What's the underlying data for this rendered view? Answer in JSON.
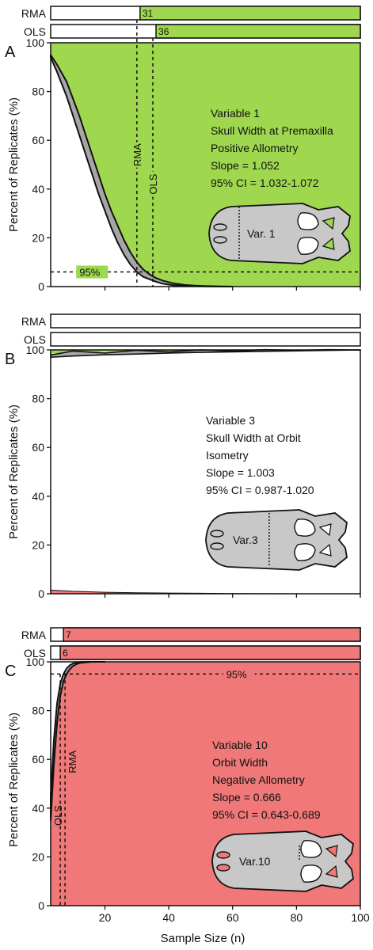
{
  "colors": {
    "green": "#9fd84f",
    "red": "#f07878",
    "gray": "#a6a6a6",
    "skull": "#c8c8c8"
  },
  "y_axis_label": "Percent of Replicates (%)",
  "x_axis_label": "Sample Size (n)",
  "bar_labels": {
    "rma": "RMA",
    "ols": "OLS"
  },
  "threshold_label": "95%",
  "chart_data": [
    {
      "type": "area",
      "panel": "A",
      "xlim": [
        3,
        100
      ],
      "ylim": [
        0,
        100
      ],
      "x_ticks": [
        20,
        40,
        60,
        80,
        100
      ],
      "y_ticks": [
        0,
        20,
        40,
        60,
        80,
        100
      ],
      "x_tick_labels": [
        "",
        "",
        "",
        "",
        ""
      ],
      "fill_color_key": "green",
      "rma_bar": {
        "value": 31,
        "label": "31"
      },
      "ols_bar": {
        "value": 36,
        "label": "36"
      },
      "rma_line": 30,
      "ols_line": 35,
      "threshold_y": 6,
      "threshold_label_x": 12,
      "annotation": [
        "Variable 1",
        "Skull Width at Premaxilla",
        "Positive Allometry",
        "Slope = 1.052",
        "95% CI = 1.032-1.072"
      ],
      "skull_label": "Var. 1",
      "lower_curve": {
        "x": [
          3,
          5,
          8,
          10,
          12,
          14,
          16,
          18,
          20,
          22,
          24,
          26,
          28,
          30,
          32,
          34,
          36,
          38,
          40,
          42,
          45,
          48,
          52,
          56,
          60
        ],
        "y": [
          94,
          88,
          78,
          70,
          62,
          54,
          46,
          38,
          31,
          24,
          18,
          13,
          9,
          6,
          4,
          3,
          2,
          1.2,
          0.8,
          0.5,
          0.3,
          0.2,
          0.1,
          0,
          0
        ]
      },
      "upper_curve": {
        "x": [
          3,
          5,
          8,
          10,
          12,
          14,
          16,
          18,
          20,
          22,
          24,
          26,
          28,
          30,
          32,
          34,
          36,
          38,
          40,
          42,
          45,
          48,
          52,
          56,
          60
        ],
        "y": [
          95,
          91,
          84,
          77,
          70,
          62,
          54,
          46,
          38,
          31,
          25,
          19,
          14,
          10,
          7,
          5,
          3.5,
          2.5,
          1.8,
          1.2,
          0.7,
          0.4,
          0.2,
          0.1,
          0
        ]
      }
    },
    {
      "type": "area",
      "panel": "B",
      "xlim": [
        3,
        100
      ],
      "ylim": [
        0,
        100
      ],
      "x_ticks": [
        20,
        40,
        60,
        80,
        100
      ],
      "y_ticks": [
        0,
        20,
        40,
        60,
        80,
        100
      ],
      "x_tick_labels": [
        "",
        "",
        "",
        "",
        ""
      ],
      "fill_color_key": "",
      "top_band": {
        "x": [
          3,
          10,
          20,
          30,
          40,
          50,
          60,
          70,
          80,
          90,
          100
        ],
        "lower": [
          97,
          97.5,
          98,
          98.3,
          98.7,
          99,
          99.2,
          99.4,
          99.6,
          99.8,
          100
        ],
        "upper": [
          98.5,
          99,
          99.2,
          99.4,
          99.6,
          99.7,
          99.8,
          99.9,
          100,
          100,
          100
        ]
      },
      "bottom_band": {
        "x": [
          3,
          10,
          20,
          30,
          40,
          50,
          60,
          70,
          80,
          90,
          100
        ],
        "upper": [
          1.5,
          1,
          0.6,
          0.4,
          0.3,
          0.2,
          0.1,
          0.05,
          0,
          0,
          0
        ]
      },
      "annotation": [
        "Variable 3",
        "Skull Width at Orbit",
        "Isometry",
        "Slope = 1.003",
        "95% CI = 0.987-1.020"
      ],
      "skull_label": "Var.3"
    },
    {
      "type": "area",
      "panel": "C",
      "xlim": [
        3,
        100
      ],
      "ylim": [
        0,
        100
      ],
      "x_ticks": [
        20,
        40,
        60,
        80,
        100
      ],
      "y_ticks": [
        0,
        20,
        40,
        60,
        80,
        100
      ],
      "x_tick_labels": [
        "20",
        "40",
        "60",
        "80",
        "100"
      ],
      "fill_color_key": "red",
      "rma_bar": {
        "value": 7,
        "label": "7"
      },
      "ols_bar": {
        "value": 6,
        "label": "6"
      },
      "rma_line": 7.5,
      "ols_line": 6,
      "threshold_y": 95,
      "threshold_label_x": 58,
      "annotation": [
        "Variable 10",
        "Orbit Width",
        "Negative Allometry",
        "Slope = 0.666",
        "95% CI = 0.643-0.689"
      ],
      "skull_label": "Var.10",
      "lower_curve": {
        "x": [
          3,
          4,
          5,
          6,
          7,
          8,
          9,
          10,
          11,
          12,
          14,
          16,
          20
        ],
        "y": [
          35,
          58,
          75,
          86,
          92,
          95,
          97,
          98.3,
          99,
          99.5,
          99.8,
          100,
          100
        ]
      },
      "upper_curve": {
        "x": [
          3,
          4,
          5,
          6,
          7,
          8,
          9,
          10,
          11,
          12,
          14,
          16,
          20
        ],
        "y": [
          45,
          68,
          83,
          91,
          95,
          97.3,
          98.6,
          99.3,
          99.7,
          99.9,
          100,
          100,
          100
        ]
      }
    }
  ]
}
